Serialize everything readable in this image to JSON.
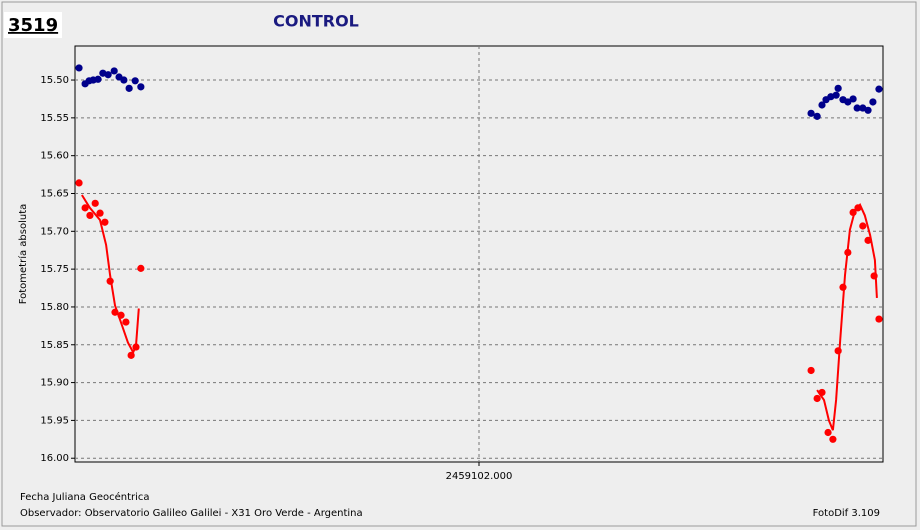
{
  "chart_data": {
    "type": "scatter",
    "badge": "3519",
    "title": "CONTROL",
    "y_label": "Fotometría absoluta",
    "x_label": "Fecha Juliana Geocéntrica",
    "observer": "Observador: Observatorio Galileo Galilei - X31 Oro Verde - Argentina",
    "software": "FotoDif 3.109",
    "xlim": [
      2459101.9,
      2459102.1
    ],
    "xticks": [
      {
        "value": 2459102,
        "label": "2459102.000"
      }
    ],
    "ylim": [
      15.455,
      16.005
    ],
    "y_inverted": true,
    "yticks": [
      {
        "value": 15.5,
        "label": "15.50"
      },
      15.55,
      {
        "value": 15.6,
        "label": "15.60"
      },
      15.65,
      {
        "value": 15.7,
        "label": "15.70"
      },
      15.75,
      {
        "value": 15.8,
        "label": "15.80"
      },
      15.85,
      {
        "value": 15.9,
        "label": "15.90"
      },
      15.95,
      {
        "value": 16,
        "label": "16.00"
      }
    ],
    "grid": true,
    "series": [
      {
        "color": "#00008b",
        "mode": "markers",
        "x": [
          2459101.901,
          2459101.9025,
          2459101.9035,
          2459101.9045,
          2459101.9057,
          2459101.9069,
          2459101.9082,
          2459101.9097,
          2459101.9109,
          2459101.9121,
          2459101.9134,
          2459101.9149,
          2459101.9163,
          2459102.0822,
          2459102.0837,
          2459102.0849,
          2459102.0859,
          2459102.0871,
          2459102.0884,
          2459102.0889,
          2459102.0901,
          2459102.0913,
          2459102.0926,
          2459102.0936,
          2459102.095,
          2459102.0963,
          2459102.0975,
          2459102.099
        ],
        "values": [
          15.484,
          15.505,
          15.501,
          15.5,
          15.499,
          15.491,
          15.493,
          15.488,
          15.496,
          15.5,
          15.511,
          15.501,
          15.509,
          15.544,
          15.548,
          15.533,
          15.526,
          15.522,
          15.52,
          15.511,
          15.526,
          15.529,
          15.525,
          15.537,
          15.537,
          15.54,
          15.529,
          15.512
        ]
      },
      {
        "color": "#ff0000",
        "mode": "markers",
        "x": [
          2459101.901,
          2459101.9025,
          2459101.9037,
          2459101.905,
          2459101.9062,
          2459101.9074,
          2459101.9087,
          2459101.9099,
          2459101.9114,
          2459101.9126,
          2459101.9139,
          2459101.9151,
          2459101.9163,
          2459102.0822,
          2459102.0837,
          2459102.0849,
          2459102.0864,
          2459102.0876,
          2459102.0889,
          2459102.0901,
          2459102.0913,
          2459102.0926,
          2459102.0938,
          2459102.095,
          2459102.0963,
          2459102.0978,
          2459102.099
        ],
        "values": [
          15.636,
          15.669,
          15.679,
          15.663,
          15.676,
          15.688,
          15.766,
          15.807,
          15.811,
          15.82,
          15.864,
          15.853,
          15.749,
          15.884,
          15.921,
          15.913,
          15.966,
          15.975,
          15.858,
          15.774,
          15.728,
          15.675,
          15.669,
          15.693,
          15.712,
          15.759,
          15.816
        ]
      },
      {
        "color": "#ff0000",
        "mode": "line",
        "x": [
          2459101.9017,
          2459101.9037,
          2459101.9062,
          2459101.9077,
          2459101.9087,
          2459101.9099,
          2459101.9116,
          2459101.9131,
          2459101.9144,
          2459101.9151,
          2459101.9158,
          null,
          2459102.0837,
          2459102.0854,
          2459102.0866,
          2459102.0876,
          2459102.0884,
          2459102.0894,
          2459102.0906,
          2459102.0918,
          2459102.0931,
          2459102.0943,
          2459102.0955,
          2459102.0968,
          2459102.098,
          2459102.0985
        ],
        "values": [
          15.652,
          15.669,
          15.685,
          15.718,
          15.758,
          15.798,
          15.824,
          15.847,
          15.86,
          15.851,
          15.802,
          null,
          15.91,
          15.923,
          15.95,
          15.963,
          15.923,
          15.844,
          15.758,
          15.698,
          15.672,
          15.665,
          15.679,
          15.705,
          15.738,
          15.788
        ]
      }
    ]
  }
}
